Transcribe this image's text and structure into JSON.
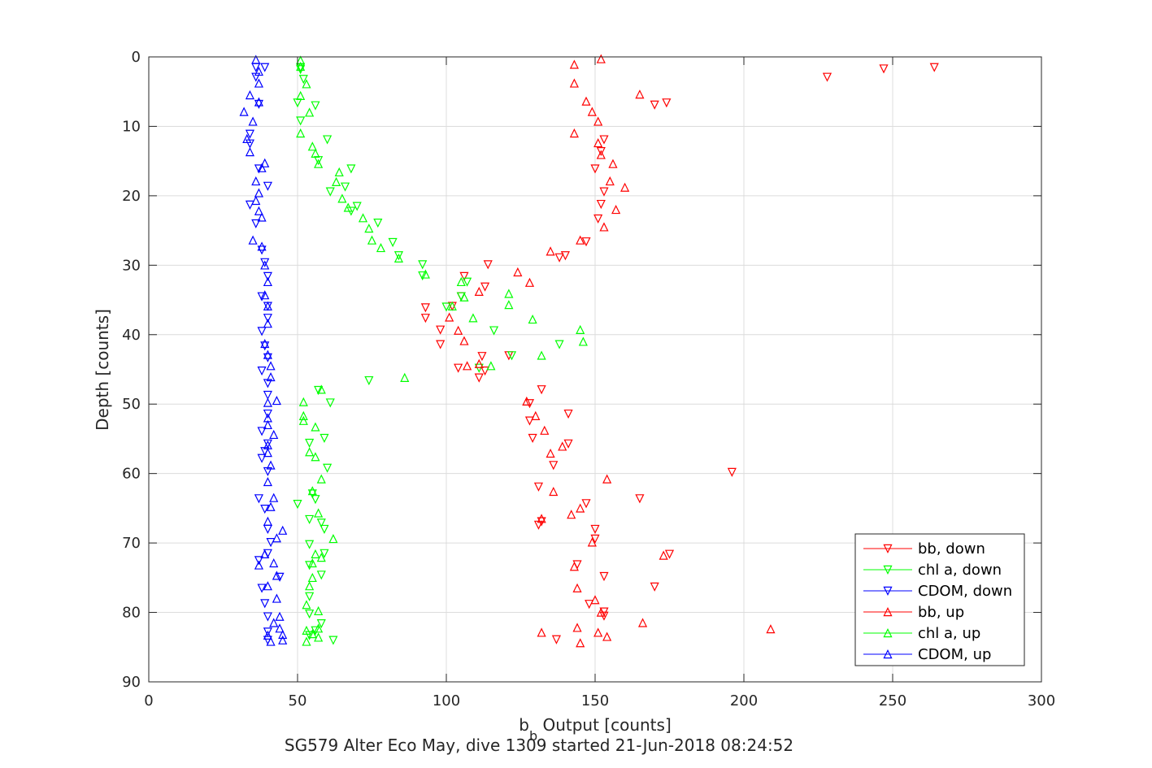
{
  "chart_data": {
    "type": "scatter",
    "xlabel_main": "b",
    "xlabel_sub": "b",
    "xlabel_rest": " Output [counts]",
    "ylabel": "Depth [counts]",
    "caption": "SG579 Alter Eco May, dive 1309 started 21-Jun-2018 08:24:52",
    "xlim": [
      0,
      300
    ],
    "ylim": [
      0,
      90
    ],
    "y_reversed": true,
    "xticks": [
      0,
      50,
      100,
      150,
      200,
      250,
      300
    ],
    "yticks": [
      0,
      10,
      20,
      30,
      40,
      50,
      60,
      70,
      80,
      90
    ],
    "grid": true,
    "legend_position": "bottom-right",
    "series": [
      {
        "name": "bb, down",
        "color": "#ff0000",
        "marker": "triangle-down",
        "points": [
          [
            247,
            1.7
          ],
          [
            264,
            1.5
          ],
          [
            228,
            2.9
          ],
          [
            170,
            6.9
          ],
          [
            174,
            6.6
          ],
          [
            153,
            11.9
          ],
          [
            152,
            13.6
          ],
          [
            150,
            16.1
          ],
          [
            153,
            19.4
          ],
          [
            152,
            21.2
          ],
          [
            151,
            23.3
          ],
          [
            147,
            26.6
          ],
          [
            140,
            28.6
          ],
          [
            138,
            28.9
          ],
          [
            114,
            29.9
          ],
          [
            106,
            31.6
          ],
          [
            113,
            33.1
          ],
          [
            105,
            34.5
          ],
          [
            102,
            35.9
          ],
          [
            93,
            36.1
          ],
          [
            93,
            37.6
          ],
          [
            98,
            39.3
          ],
          [
            98,
            41.4
          ],
          [
            112,
            43.1
          ],
          [
            121,
            43.0
          ],
          [
            104,
            44.8
          ],
          [
            111,
            46.2
          ],
          [
            132,
            47.9
          ],
          [
            128,
            49.9
          ],
          [
            141,
            51.4
          ],
          [
            128,
            52.4
          ],
          [
            129,
            54.9
          ],
          [
            141,
            55.7
          ],
          [
            136,
            58.8
          ],
          [
            196,
            59.8
          ],
          [
            131,
            61.9
          ],
          [
            165,
            63.6
          ],
          [
            147,
            64.3
          ],
          [
            132,
            66.9
          ],
          [
            131,
            67.4
          ],
          [
            150,
            68.0
          ],
          [
            150,
            69.4
          ],
          [
            175,
            71.6
          ],
          [
            144,
            73.1
          ],
          [
            153,
            74.8
          ],
          [
            170,
            76.3
          ],
          [
            148,
            78.8
          ],
          [
            153,
            79.9
          ],
          [
            153,
            80.5
          ],
          [
            137,
            83.9
          ],
          [
            113,
            45.2
          ]
        ]
      },
      {
        "name": "chl a, down",
        "color": "#00ff00",
        "marker": "triangle-down",
        "points": [
          [
            51,
            1.5
          ],
          [
            51,
            1.8
          ],
          [
            52,
            3.2
          ],
          [
            50,
            6.6
          ],
          [
            56,
            7.0
          ],
          [
            51,
            9.2
          ],
          [
            60,
            11.9
          ],
          [
            57,
            14.9
          ],
          [
            68,
            16.1
          ],
          [
            66,
            18.7
          ],
          [
            61,
            19.4
          ],
          [
            70,
            21.5
          ],
          [
            68,
            22.2
          ],
          [
            77,
            23.9
          ],
          [
            82,
            26.7
          ],
          [
            84,
            28.6
          ],
          [
            92,
            29.9
          ],
          [
            92,
            31.5
          ],
          [
            107,
            32.4
          ],
          [
            105,
            34.5
          ],
          [
            100,
            36.0
          ],
          [
            116,
            39.4
          ],
          [
            138,
            41.4
          ],
          [
            122,
            43.0
          ],
          [
            111,
            44.8
          ],
          [
            74,
            46.6
          ],
          [
            57,
            48.0
          ],
          [
            61,
            49.8
          ],
          [
            59,
            54.9
          ],
          [
            54,
            55.6
          ],
          [
            60,
            59.2
          ],
          [
            55,
            62.9
          ],
          [
            56,
            63.7
          ],
          [
            50,
            64.4
          ],
          [
            54,
            66.6
          ],
          [
            58,
            67.1
          ],
          [
            59,
            68.0
          ],
          [
            54,
            70.2
          ],
          [
            59,
            71.5
          ],
          [
            54,
            73.2
          ],
          [
            58,
            74.6
          ],
          [
            54,
            77.7
          ],
          [
            54,
            80.2
          ],
          [
            58,
            81.6
          ],
          [
            56,
            82.6
          ],
          [
            62,
            84.0
          ],
          [
            54,
            83.3
          ]
        ]
      },
      {
        "name": "CDOM, down",
        "color": "#0000ff",
        "marker": "triangle-down",
        "points": [
          [
            36,
            1.5
          ],
          [
            39,
            1.5
          ],
          [
            36,
            2.9
          ],
          [
            37,
            6.8
          ],
          [
            34,
            11.1
          ],
          [
            34,
            12.5
          ],
          [
            37,
            16.1
          ],
          [
            40,
            18.6
          ],
          [
            34,
            21.3
          ],
          [
            36,
            24.0
          ],
          [
            38,
            27.8
          ],
          [
            39,
            29.6
          ],
          [
            40,
            31.6
          ],
          [
            38,
            34.5
          ],
          [
            40,
            35.9
          ],
          [
            40,
            37.6
          ],
          [
            38,
            39.5
          ],
          [
            39,
            41.6
          ],
          [
            40,
            43.3
          ],
          [
            38,
            45.2
          ],
          [
            40,
            47.0
          ],
          [
            40,
            48.7
          ],
          [
            40,
            51.4
          ],
          [
            38,
            53.9
          ],
          [
            40,
            55.7
          ],
          [
            39,
            56.8
          ],
          [
            38,
            57.8
          ],
          [
            40,
            59.7
          ],
          [
            37,
            63.6
          ],
          [
            39,
            65.1
          ],
          [
            40,
            68.0
          ],
          [
            41,
            69.9
          ],
          [
            40,
            71.5
          ],
          [
            44,
            74.9
          ],
          [
            38,
            76.5
          ],
          [
            39,
            78.7
          ],
          [
            40,
            80.6
          ],
          [
            40,
            82.8
          ],
          [
            40,
            84.0
          ],
          [
            37,
            72.5
          ]
        ]
      },
      {
        "name": "bb, up",
        "color": "#ff0000",
        "marker": "triangle-up",
        "points": [
          [
            152,
            0.3
          ],
          [
            143,
            1.1
          ],
          [
            143,
            3.8
          ],
          [
            165,
            5.4
          ],
          [
            147,
            6.4
          ],
          [
            149,
            7.9
          ],
          [
            151,
            9.3
          ],
          [
            143,
            11.0
          ],
          [
            151,
            12.4
          ],
          [
            152,
            14.1
          ],
          [
            156,
            15.4
          ],
          [
            155,
            17.9
          ],
          [
            160,
            18.8
          ],
          [
            157,
            22.0
          ],
          [
            153,
            24.5
          ],
          [
            145,
            26.4
          ],
          [
            135,
            28.0
          ],
          [
            124,
            31.0
          ],
          [
            128,
            32.5
          ],
          [
            111,
            33.8
          ],
          [
            101,
            37.5
          ],
          [
            104,
            39.4
          ],
          [
            106,
            40.9
          ],
          [
            111,
            44.2
          ],
          [
            107,
            44.5
          ],
          [
            127,
            49.6
          ],
          [
            130,
            51.7
          ],
          [
            133,
            53.8
          ],
          [
            139,
            56.1
          ],
          [
            135,
            57.1
          ],
          [
            154,
            60.8
          ],
          [
            136,
            62.6
          ],
          [
            145,
            65.0
          ],
          [
            142,
            65.9
          ],
          [
            132,
            66.5
          ],
          [
            149,
            69.9
          ],
          [
            173,
            71.8
          ],
          [
            143,
            73.4
          ],
          [
            144,
            76.5
          ],
          [
            150,
            78.2
          ],
          [
            152,
            80.0
          ],
          [
            166,
            81.5
          ],
          [
            209,
            82.4
          ],
          [
            144,
            82.2
          ],
          [
            132,
            82.9
          ],
          [
            151,
            82.9
          ],
          [
            154,
            83.5
          ],
          [
            145,
            84.4
          ]
        ]
      },
      {
        "name": "chl a, up",
        "color": "#00ff00",
        "marker": "triangle-up",
        "points": [
          [
            51,
            0.5
          ],
          [
            51,
            1.4
          ],
          [
            53,
            3.9
          ],
          [
            51,
            5.6
          ],
          [
            54,
            8.0
          ],
          [
            51,
            11.0
          ],
          [
            55,
            12.9
          ],
          [
            56,
            13.9
          ],
          [
            57,
            15.4
          ],
          [
            64,
            16.6
          ],
          [
            63,
            18.0
          ],
          [
            65,
            20.4
          ],
          [
            67,
            21.7
          ],
          [
            72,
            23.2
          ],
          [
            74,
            24.7
          ],
          [
            75,
            26.4
          ],
          [
            78,
            27.5
          ],
          [
            84,
            29.0
          ],
          [
            93,
            31.3
          ],
          [
            105,
            32.4
          ],
          [
            106,
            34.6
          ],
          [
            121,
            34.1
          ],
          [
            121,
            35.7
          ],
          [
            102,
            35.9
          ],
          [
            109,
            37.6
          ],
          [
            129,
            37.8
          ],
          [
            145,
            39.3
          ],
          [
            146,
            41.0
          ],
          [
            132,
            43.0
          ],
          [
            115,
            44.5
          ],
          [
            86,
            46.2
          ],
          [
            58,
            47.9
          ],
          [
            52,
            49.7
          ],
          [
            52,
            51.7
          ],
          [
            52,
            52.4
          ],
          [
            56,
            53.3
          ],
          [
            54,
            56.9
          ],
          [
            56,
            57.6
          ],
          [
            58,
            60.8
          ],
          [
            55,
            62.5
          ],
          [
            57,
            65.7
          ],
          [
            62,
            69.4
          ],
          [
            56,
            71.6
          ],
          [
            58,
            72.1
          ],
          [
            55,
            72.9
          ],
          [
            55,
            75.0
          ],
          [
            54,
            76.2
          ],
          [
            53,
            78.9
          ],
          [
            57,
            79.8
          ],
          [
            57,
            82.3
          ],
          [
            53,
            82.6
          ],
          [
            55,
            83.1
          ],
          [
            57,
            83.6
          ],
          [
            53,
            84.2
          ]
        ]
      },
      {
        "name": "CDOM, up",
        "color": "#0000ff",
        "marker": "triangle-up",
        "points": [
          [
            36,
            0.4
          ],
          [
            37,
            2.1
          ],
          [
            37,
            3.8
          ],
          [
            34,
            5.5
          ],
          [
            37,
            6.5
          ],
          [
            32,
            7.9
          ],
          [
            35,
            9.3
          ],
          [
            33,
            11.8
          ],
          [
            34,
            13.7
          ],
          [
            39,
            15.3
          ],
          [
            38,
            16.0
          ],
          [
            36,
            17.9
          ],
          [
            37,
            19.6
          ],
          [
            36,
            20.7
          ],
          [
            37,
            22.2
          ],
          [
            38,
            23.1
          ],
          [
            35,
            26.4
          ],
          [
            38,
            27.3
          ],
          [
            39,
            30.0
          ],
          [
            40,
            32.4
          ],
          [
            39,
            34.3
          ],
          [
            40,
            35.9
          ],
          [
            40,
            38.4
          ],
          [
            39,
            41.3
          ],
          [
            40,
            42.9
          ],
          [
            41,
            44.5
          ],
          [
            41,
            46.1
          ],
          [
            40,
            49.8
          ],
          [
            43,
            49.5
          ],
          [
            40,
            52.0
          ],
          [
            40,
            53.0
          ],
          [
            42,
            54.4
          ],
          [
            40,
            55.9
          ],
          [
            40,
            57.0
          ],
          [
            41,
            58.8
          ],
          [
            40,
            61.2
          ],
          [
            42,
            63.5
          ],
          [
            41,
            64.8
          ],
          [
            40,
            66.9
          ],
          [
            45,
            68.2
          ],
          [
            43,
            69.3
          ],
          [
            39,
            71.6
          ],
          [
            42,
            72.9
          ],
          [
            37,
            73.2
          ],
          [
            43,
            74.7
          ],
          [
            40,
            76.2
          ],
          [
            43,
            78.0
          ],
          [
            44,
            80.6
          ],
          [
            42,
            81.5
          ],
          [
            44,
            82.3
          ],
          [
            45,
            83.2
          ],
          [
            40,
            83.3
          ],
          [
            45,
            84.0
          ],
          [
            41,
            84.2
          ]
        ]
      }
    ]
  }
}
